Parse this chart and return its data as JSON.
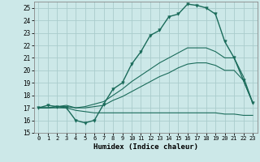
{
  "xlabel": "Humidex (Indice chaleur)",
  "xlim": [
    -0.5,
    23.5
  ],
  "ylim": [
    15,
    25.5
  ],
  "yticks": [
    15,
    16,
    17,
    18,
    19,
    20,
    21,
    22,
    23,
    24,
    25
  ],
  "xticks": [
    0,
    1,
    2,
    3,
    4,
    5,
    6,
    7,
    8,
    9,
    10,
    11,
    12,
    13,
    14,
    15,
    16,
    17,
    18,
    19,
    20,
    21,
    22,
    23
  ],
  "bg_color": "#cce8e8",
  "grid_color": "#b0d4d4",
  "line_color": "#1a6b5a",
  "main_curve": [
    17.0,
    17.2,
    17.1,
    17.0,
    16.0,
    15.8,
    16.0,
    17.3,
    18.5,
    19.0,
    20.5,
    21.5,
    22.8,
    23.2,
    24.3,
    24.5,
    25.3,
    25.2,
    25.0,
    24.5,
    22.3,
    21.0,
    19.2,
    17.4
  ],
  "line_flat": [
    17.0,
    17.0,
    17.0,
    17.0,
    16.8,
    16.7,
    16.6,
    16.6,
    16.6,
    16.6,
    16.6,
    16.6,
    16.6,
    16.6,
    16.6,
    16.6,
    16.6,
    16.6,
    16.6,
    16.6,
    16.5,
    16.5,
    16.4,
    16.4
  ],
  "line_upper": [
    17.0,
    17.0,
    17.1,
    17.2,
    17.0,
    17.1,
    17.3,
    17.5,
    18.0,
    18.5,
    19.1,
    19.6,
    20.1,
    20.6,
    21.0,
    21.4,
    21.8,
    21.8,
    21.8,
    21.5,
    21.0,
    21.0,
    19.5,
    17.4
  ],
  "line_lower": [
    17.0,
    17.0,
    17.1,
    17.1,
    17.0,
    17.0,
    17.1,
    17.2,
    17.6,
    17.9,
    18.3,
    18.7,
    19.1,
    19.5,
    19.8,
    20.2,
    20.5,
    20.6,
    20.6,
    20.4,
    20.0,
    20.0,
    19.2,
    17.4
  ]
}
